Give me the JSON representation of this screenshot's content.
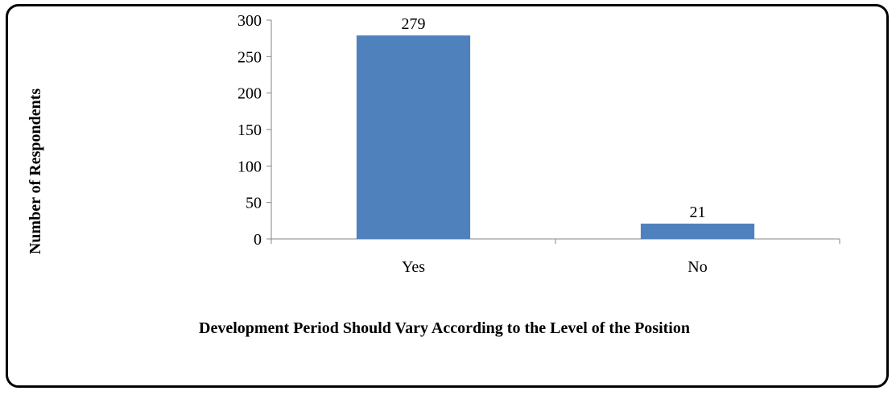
{
  "chart_data": {
    "type": "bar",
    "categories": [
      "Yes",
      "No"
    ],
    "values": [
      279,
      21
    ],
    "data_labels": [
      "279",
      "21"
    ],
    "title": "",
    "xlabel": "Development Period Should Vary According to the Level of the Position",
    "ylabel": "Number of Respondents",
    "ylim": [
      0,
      300
    ],
    "yticks": [
      "0",
      "50",
      "100",
      "150",
      "200",
      "250",
      "300"
    ],
    "grid": false,
    "legend": "none",
    "bar_color": "#4F81BD"
  }
}
